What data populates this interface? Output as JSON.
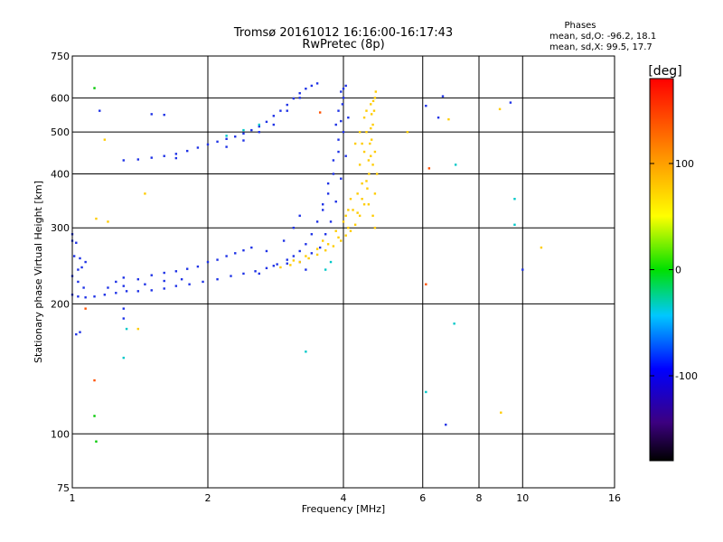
{
  "chart_data": {
    "type": "scatter",
    "title": "Tromsø 20161012 16:16:00-16:17:43",
    "subtitle": "RwPretec (8p)",
    "xlabel": "Frequency [MHz]",
    "ylabel": "Stationary phase Virtual Height [km]",
    "xscale": "log",
    "yscale": "log",
    "xlim": [
      1,
      16
    ],
    "ylim": [
      75,
      750
    ],
    "xticks": [
      1,
      2,
      4,
      6,
      8,
      10,
      16
    ],
    "xtick_labels": [
      "1",
      "2",
      "4",
      "6",
      "8",
      "10",
      "16"
    ],
    "yticks": [
      75,
      100,
      200,
      300,
      400,
      500,
      600,
      750
    ],
    "ytick_labels": [
      "75",
      "100",
      "200",
      "300",
      "400",
      "500",
      "600",
      "750"
    ],
    "grid": true,
    "stats": {
      "heading": "Phases",
      "line_o": "mean, sd,O: -96.2, 18.1",
      "line_x": "mean, sd,X:  99.5, 17.7"
    },
    "colorbar": {
      "label": "[deg]",
      "min": -180,
      "max": 180,
      "ticks": [
        -100,
        0,
        100
      ],
      "tick_labels": [
        "-100",
        "0",
        "100"
      ]
    },
    "series": [
      {
        "mode": "O",
        "phase_deg": -96,
        "color": "#1e32e6",
        "points": [
          [
            1.0,
            210
          ],
          [
            1.03,
            208
          ],
          [
            1.07,
            207
          ],
          [
            1.12,
            208
          ],
          [
            1.18,
            210
          ],
          [
            1.25,
            212
          ],
          [
            1.32,
            214
          ],
          [
            1.4,
            214
          ],
          [
            1.5,
            215
          ],
          [
            1.6,
            217
          ],
          [
            1.7,
            220
          ],
          [
            1.82,
            222
          ],
          [
            1.95,
            225
          ],
          [
            2.1,
            228
          ],
          [
            2.25,
            232
          ],
          [
            2.4,
            235
          ],
          [
            2.55,
            238
          ],
          [
            2.7,
            242
          ],
          [
            2.85,
            247
          ],
          [
            3.0,
            253
          ],
          [
            3.1,
            258
          ],
          [
            3.2,
            265
          ],
          [
            3.3,
            275
          ],
          [
            3.4,
            290
          ],
          [
            3.5,
            310
          ],
          [
            3.6,
            340
          ],
          [
            3.7,
            380
          ],
          [
            3.8,
            430
          ],
          [
            3.9,
            480
          ],
          [
            3.95,
            530
          ],
          [
            3.98,
            580
          ],
          [
            4.0,
            630
          ],
          [
            1.0,
            232
          ],
          [
            1.03,
            225
          ],
          [
            1.06,
            218
          ],
          [
            1.01,
            258
          ],
          [
            1.04,
            255
          ],
          [
            1.07,
            250
          ],
          [
            1.05,
            243
          ],
          [
            1.0,
            280
          ],
          [
            1.02,
            277
          ],
          [
            1.0,
            290
          ],
          [
            1.25,
            225
          ],
          [
            1.3,
            230
          ],
          [
            1.4,
            228
          ],
          [
            1.5,
            233
          ],
          [
            1.6,
            236
          ],
          [
            1.7,
            238
          ],
          [
            1.8,
            241
          ],
          [
            1.9,
            244
          ],
          [
            2.0,
            250
          ],
          [
            2.1,
            253
          ],
          [
            2.2,
            258
          ],
          [
            2.3,
            262
          ],
          [
            2.4,
            266
          ],
          [
            2.5,
            270
          ],
          [
            1.2,
            218
          ],
          [
            1.3,
            220
          ],
          [
            1.45,
            222
          ],
          [
            1.6,
            226
          ],
          [
            1.75,
            228
          ],
          [
            1.3,
            430
          ],
          [
            1.4,
            432
          ],
          [
            1.5,
            436
          ],
          [
            1.6,
            440
          ],
          [
            1.7,
            445
          ],
          [
            1.8,
            452
          ],
          [
            1.9,
            460
          ],
          [
            2.0,
            468
          ],
          [
            2.1,
            475
          ],
          [
            2.2,
            482
          ],
          [
            2.3,
            488
          ],
          [
            2.4,
            496
          ],
          [
            2.5,
            505
          ],
          [
            2.6,
            515
          ],
          [
            2.7,
            528
          ],
          [
            2.8,
            545
          ],
          [
            2.9,
            560
          ],
          [
            3.0,
            578
          ],
          [
            3.1,
            598
          ],
          [
            3.2,
            615
          ],
          [
            3.3,
            630
          ],
          [
            3.4,
            640
          ],
          [
            3.5,
            648
          ],
          [
            2.2,
            462
          ],
          [
            2.4,
            478
          ],
          [
            2.6,
            500
          ],
          [
            2.8,
            520
          ],
          [
            3.0,
            560
          ],
          [
            3.2,
            600
          ],
          [
            1.7,
            435
          ],
          [
            3.55,
            270
          ],
          [
            3.65,
            290
          ],
          [
            3.75,
            310
          ],
          [
            3.85,
            345
          ],
          [
            3.95,
            390
          ],
          [
            4.05,
            440
          ],
          [
            3.6,
            330
          ],
          [
            3.7,
            360
          ],
          [
            3.8,
            400
          ],
          [
            3.9,
            450
          ],
          [
            4.0,
            500
          ],
          [
            3.9,
            560
          ],
          [
            4.0,
            600
          ],
          [
            4.05,
            640
          ],
          [
            3.95,
            620
          ],
          [
            4.1,
            540
          ],
          [
            3.85,
            520
          ],
          [
            2.6,
            235
          ],
          [
            2.8,
            245
          ],
          [
            3.0,
            248
          ],
          [
            3.2,
            250
          ],
          [
            3.4,
            262
          ],
          [
            2.95,
            280
          ],
          [
            3.1,
            300
          ],
          [
            3.2,
            320
          ],
          [
            1.15,
            560
          ],
          [
            1.5,
            550
          ],
          [
            1.6,
            548
          ],
          [
            6.65,
            605
          ],
          [
            1.3,
            195
          ],
          [
            1.3,
            185
          ],
          [
            1.04,
            172
          ],
          [
            1.02,
            170
          ],
          [
            6.1,
            575
          ],
          [
            6.5,
            540
          ],
          [
            9.4,
            585
          ],
          [
            10.0,
            240
          ],
          [
            6.75,
            105
          ],
          [
            1.03,
            240
          ],
          [
            2.7,
            265
          ],
          [
            3.3,
            240
          ]
        ]
      },
      {
        "mode": "X",
        "phase_deg": 100,
        "color": "#ffcc00",
        "points": [
          [
            2.9,
            243
          ],
          [
            3.05,
            246
          ],
          [
            3.2,
            250
          ],
          [
            3.35,
            255
          ],
          [
            3.5,
            260
          ],
          [
            3.65,
            266
          ],
          [
            3.8,
            272
          ],
          [
            3.95,
            280
          ],
          [
            4.05,
            288
          ],
          [
            4.15,
            295
          ],
          [
            4.25,
            305
          ],
          [
            4.35,
            320
          ],
          [
            4.45,
            340
          ],
          [
            4.52,
            370
          ],
          [
            4.56,
            400
          ],
          [
            4.6,
            440
          ],
          [
            4.62,
            480
          ],
          [
            4.65,
            520
          ],
          [
            4.68,
            560
          ],
          [
            4.7,
            600
          ],
          [
            4.72,
            620
          ],
          [
            3.1,
            252
          ],
          [
            3.3,
            258
          ],
          [
            3.5,
            268
          ],
          [
            3.7,
            275
          ],
          [
            3.9,
            285
          ],
          [
            4.1,
            300
          ],
          [
            4.3,
            325
          ],
          [
            4.4,
            350
          ],
          [
            4.5,
            385
          ],
          [
            4.55,
            430
          ],
          [
            4.58,
            470
          ],
          [
            4.6,
            510
          ],
          [
            4.62,
            550
          ],
          [
            4.66,
            590
          ],
          [
            4.45,
            450
          ],
          [
            4.35,
            420
          ],
          [
            4.5,
            500
          ],
          [
            4.4,
            380
          ],
          [
            4.2,
            330
          ],
          [
            4.3,
            360
          ],
          [
            4.55,
            340
          ],
          [
            4.65,
            320
          ],
          [
            4.7,
            300
          ],
          [
            4.05,
            320
          ],
          [
            4.15,
            350
          ],
          [
            3.6,
            280
          ],
          [
            3.85,
            295
          ],
          [
            4.0,
            310
          ],
          [
            4.1,
            330
          ],
          [
            4.25,
            470
          ],
          [
            4.35,
            500
          ],
          [
            4.45,
            540
          ],
          [
            4.5,
            560
          ],
          [
            4.6,
            580
          ],
          [
            4.7,
            450
          ],
          [
            4.75,
            400
          ],
          [
            4.7,
            360
          ],
          [
            4.65,
            420
          ],
          [
            4.4,
            470
          ],
          [
            1.18,
            480
          ],
          [
            1.45,
            360
          ],
          [
            1.4,
            175
          ],
          [
            8.9,
            565
          ],
          [
            8.95,
            112
          ],
          [
            11.0,
            270
          ],
          [
            6.85,
            535
          ],
          [
            5.55,
            500
          ],
          [
            1.13,
            315
          ],
          [
            1.2,
            310
          ]
        ]
      },
      {
        "mode": "other",
        "phase_deg": 0,
        "color": "#00c8c8",
        "points": [
          [
            2.2,
            490
          ],
          [
            2.4,
            505
          ],
          [
            2.6,
            520
          ],
          [
            3.65,
            240
          ],
          [
            3.75,
            250
          ],
          [
            6.1,
            125
          ],
          [
            7.05,
            180
          ],
          [
            7.1,
            420
          ],
          [
            9.6,
            350
          ],
          [
            1.3,
            150
          ],
          [
            1.32,
            175
          ],
          [
            9.6,
            305
          ],
          [
            3.3,
            155
          ]
        ]
      },
      {
        "mode": "other",
        "phase_deg": 40,
        "color": "#00c800",
        "points": [
          [
            1.12,
            632
          ],
          [
            1.12,
            110
          ],
          [
            1.13,
            96
          ]
        ]
      },
      {
        "mode": "other",
        "phase_deg": 150,
        "color": "#ff5000",
        "points": [
          [
            1.07,
            195
          ],
          [
            1.12,
            133
          ],
          [
            6.1,
            222
          ],
          [
            6.2,
            412
          ],
          [
            3.55,
            555
          ]
        ]
      }
    ]
  }
}
